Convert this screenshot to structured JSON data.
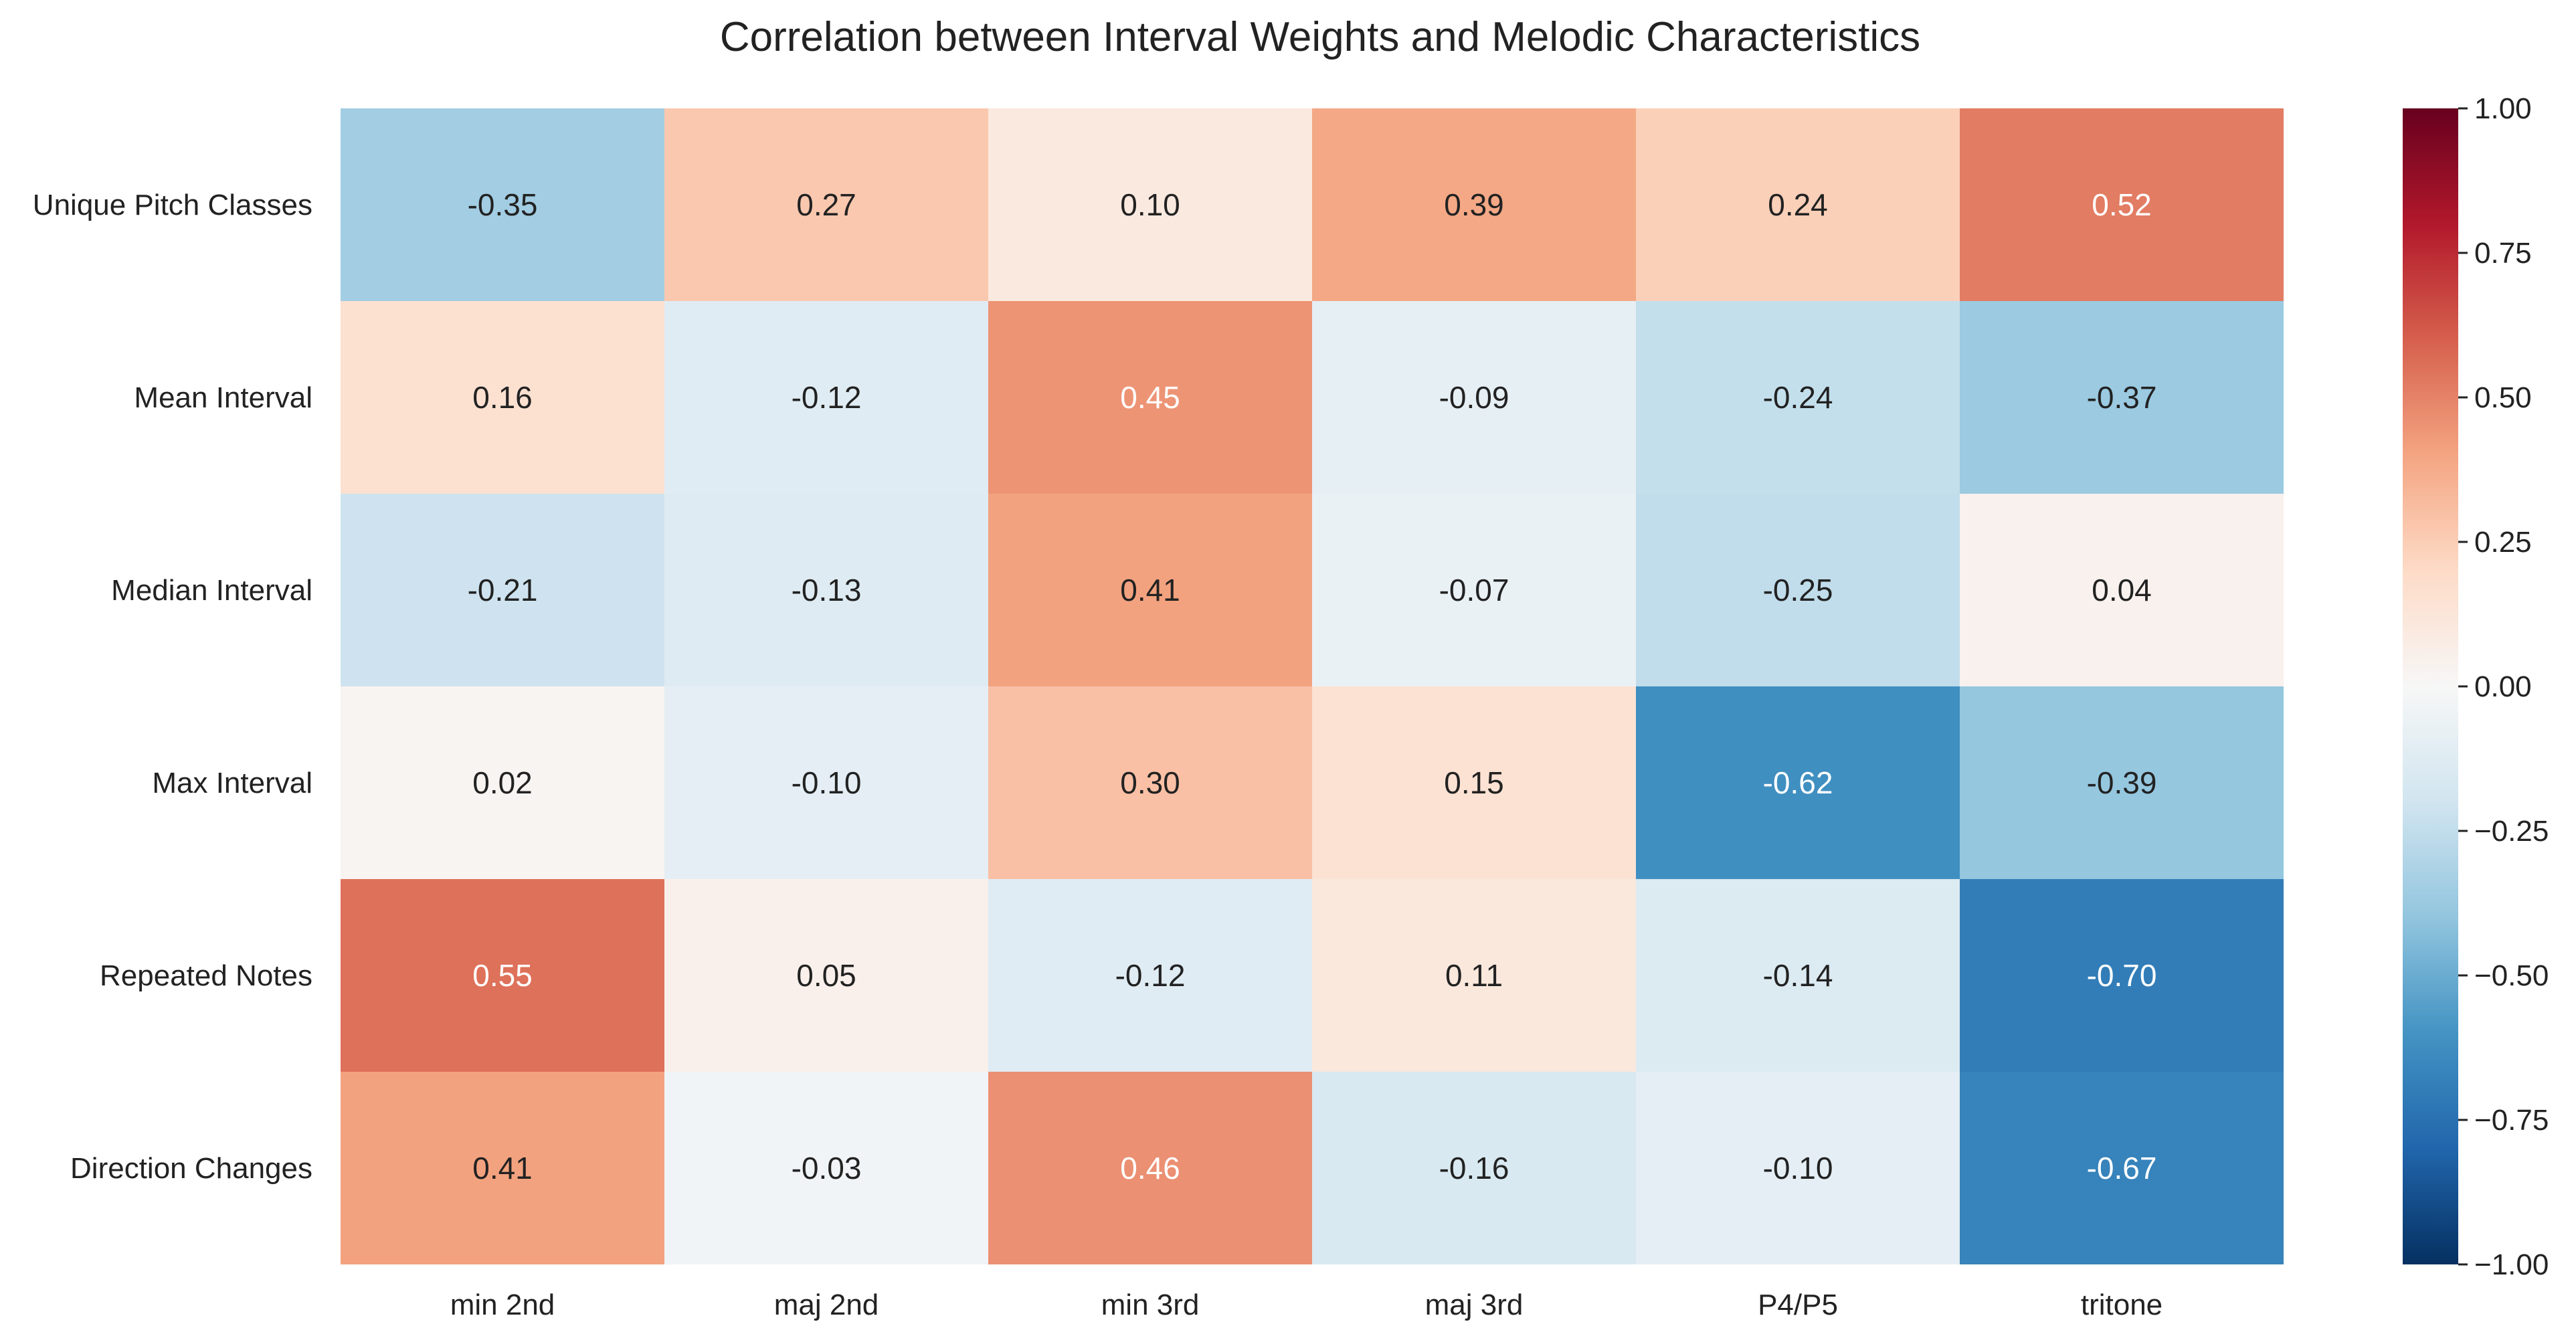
{
  "chart_data": {
    "type": "heatmap",
    "title": "Correlation between Interval Weights and Melodic Characteristics",
    "x_categories": [
      "min 2nd",
      "maj 2nd",
      "min 3rd",
      "maj 3rd",
      "P4/P5",
      "tritone"
    ],
    "y_categories": [
      "Unique Pitch Classes",
      "Mean Interval",
      "Median Interval",
      "Max Interval",
      "Repeated Notes",
      "Direction Changes"
    ],
    "values": [
      [
        -0.35,
        0.27,
        0.1,
        0.39,
        0.24,
        0.52
      ],
      [
        0.16,
        -0.12,
        0.45,
        -0.09,
        -0.24,
        -0.37
      ],
      [
        -0.21,
        -0.13,
        0.41,
        -0.07,
        -0.25,
        0.04
      ],
      [
        0.02,
        -0.1,
        0.3,
        0.15,
        -0.62,
        -0.39
      ],
      [
        0.55,
        0.05,
        -0.12,
        0.11,
        -0.14,
        -0.7
      ],
      [
        0.41,
        -0.03,
        0.46,
        -0.16,
        -0.1,
        -0.67
      ]
    ],
    "value_format": "0.00",
    "colormap": "RdBu_r",
    "vmin": -1.0,
    "vmax": 1.0,
    "colorbar_ticks": [
      "1.00",
      "0.75",
      "0.50",
      "0.25",
      "0.00",
      "−0.25",
      "−0.50",
      "−0.75",
      "−1.00"
    ],
    "colorbar_tick_values": [
      1.0,
      0.75,
      0.5,
      0.25,
      0.0,
      -0.25,
      -0.5,
      -0.75,
      -1.0
    ],
    "colors": {
      "dark_red": "#67001f",
      "red": "#b2182b",
      "mid_red": "#d6604d",
      "light_red": "#f4a582",
      "pale_red": "#fddbc7",
      "neutral": "#f7f7f7",
      "pale_blue": "#d1e5f0",
      "light_blue": "#92c5de",
      "mid_blue": "#4393c3",
      "blue": "#2166ac",
      "dark_blue": "#053061"
    }
  }
}
